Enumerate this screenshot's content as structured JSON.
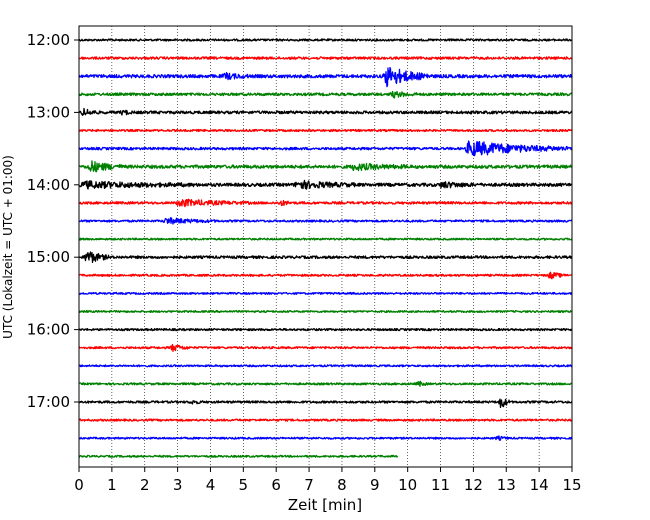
{
  "chart_data": {
    "type": "line",
    "title": "",
    "xlabel": "Zeit  [min]",
    "ylabel": "UTC (Lokalzeit = UTC + 01:00)",
    "xlim": [
      0,
      15
    ],
    "x_ticks": [
      "0",
      "1",
      "2",
      "3",
      "4",
      "5",
      "6",
      "7",
      "8",
      "9",
      "10",
      "11",
      "12",
      "13",
      "14",
      "15"
    ],
    "y_tick_labels": [
      "12:00",
      "13:00",
      "14:00",
      "15:00",
      "16:00",
      "17:00"
    ],
    "grid": "vertical dotted",
    "trace_colors": [
      "#000000",
      "#ff0000",
      "#0000ff",
      "#008000"
    ],
    "traces": [
      {
        "start": "12:00",
        "color": "#000000",
        "x_end": 15,
        "amp": 1.0,
        "events": []
      },
      {
        "start": "12:15",
        "color": "#ff0000",
        "x_end": 15,
        "amp": 1.2,
        "events": []
      },
      {
        "start": "12:30",
        "color": "#0000ff",
        "x_end": 15,
        "amp": 1.6,
        "events": [
          {
            "t": 4.4,
            "dur": 0.8,
            "a": 3
          },
          {
            "t": 9.3,
            "dur": 1.4,
            "a": 11
          }
        ]
      },
      {
        "start": "12:45",
        "color": "#008000",
        "x_end": 15,
        "amp": 1.3,
        "events": [
          {
            "t": 9.5,
            "dur": 0.8,
            "a": 3
          }
        ]
      },
      {
        "start": "13:00",
        "color": "#000000",
        "x_end": 15,
        "amp": 1.4,
        "events": [
          {
            "t": 0.1,
            "dur": 0.5,
            "a": 4
          },
          {
            "t": 1.3,
            "dur": 0.3,
            "a": 3
          }
        ]
      },
      {
        "start": "13:15",
        "color": "#ff0000",
        "x_end": 15,
        "amp": 1.0,
        "events": []
      },
      {
        "start": "13:30",
        "color": "#0000ff",
        "x_end": 15,
        "amp": 1.2,
        "events": [
          {
            "t": 11.8,
            "dur": 3.2,
            "a": 8
          }
        ]
      },
      {
        "start": "13:45",
        "color": "#008000",
        "x_end": 15,
        "amp": 1.6,
        "events": [
          {
            "t": 0.3,
            "dur": 1.0,
            "a": 6
          },
          {
            "t": 8.3,
            "dur": 1.8,
            "a": 3
          }
        ]
      },
      {
        "start": "14:00",
        "color": "#000000",
        "x_end": 15,
        "amp": 1.6,
        "events": [
          {
            "t": 0.1,
            "dur": 3.4,
            "a": 3
          },
          {
            "t": 6.6,
            "dur": 1.8,
            "a": 4
          },
          {
            "t": 11.0,
            "dur": 1.0,
            "a": 3
          }
        ]
      },
      {
        "start": "14:15",
        "color": "#ff0000",
        "x_end": 15,
        "amp": 1.2,
        "events": [
          {
            "t": 3.0,
            "dur": 2.2,
            "a": 3.5
          },
          {
            "t": 6.1,
            "dur": 0.4,
            "a": 3
          }
        ]
      },
      {
        "start": "14:30",
        "color": "#0000ff",
        "x_end": 15,
        "amp": 1.0,
        "events": [
          {
            "t": 2.6,
            "dur": 1.6,
            "a": 3
          }
        ]
      },
      {
        "start": "14:45",
        "color": "#008000",
        "x_end": 15,
        "amp": 0.9,
        "events": []
      },
      {
        "start": "15:00",
        "color": "#000000",
        "x_end": 15,
        "amp": 1.3,
        "events": [
          {
            "t": 0.2,
            "dur": 0.7,
            "a": 8
          }
        ]
      },
      {
        "start": "15:15",
        "color": "#ff0000",
        "x_end": 15,
        "amp": 1.0,
        "events": [
          {
            "t": 14.3,
            "dur": 0.5,
            "a": 4
          }
        ]
      },
      {
        "start": "15:30",
        "color": "#0000ff",
        "x_end": 15,
        "amp": 0.9,
        "events": []
      },
      {
        "start": "15:45",
        "color": "#008000",
        "x_end": 15,
        "amp": 0.9,
        "events": []
      },
      {
        "start": "16:00",
        "color": "#000000",
        "x_end": 15,
        "amp": 1.0,
        "events": []
      },
      {
        "start": "16:15",
        "color": "#ff0000",
        "x_end": 15,
        "amp": 1.0,
        "events": [
          {
            "t": 2.8,
            "dur": 0.6,
            "a": 4
          }
        ]
      },
      {
        "start": "16:30",
        "color": "#0000ff",
        "x_end": 15,
        "amp": 0.9,
        "events": []
      },
      {
        "start": "16:45",
        "color": "#008000",
        "x_end": 15,
        "amp": 1.0,
        "events": [
          {
            "t": 10.3,
            "dur": 0.3,
            "a": 3
          }
        ]
      },
      {
        "start": "17:00",
        "color": "#000000",
        "x_end": 15,
        "amp": 1.1,
        "events": [
          {
            "t": 12.8,
            "dur": 0.3,
            "a": 9
          },
          {
            "t": 3.4,
            "dur": 0.4,
            "a": 2
          }
        ]
      },
      {
        "start": "17:15",
        "color": "#ff0000",
        "x_end": 15,
        "amp": 1.0,
        "events": []
      },
      {
        "start": "17:30",
        "color": "#0000ff",
        "x_end": 15,
        "amp": 0.9,
        "events": [
          {
            "t": 12.7,
            "dur": 0.4,
            "a": 2
          }
        ]
      },
      {
        "start": "17:45",
        "color": "#008000",
        "x_end": 9.7,
        "amp": 0.9,
        "events": []
      }
    ]
  }
}
